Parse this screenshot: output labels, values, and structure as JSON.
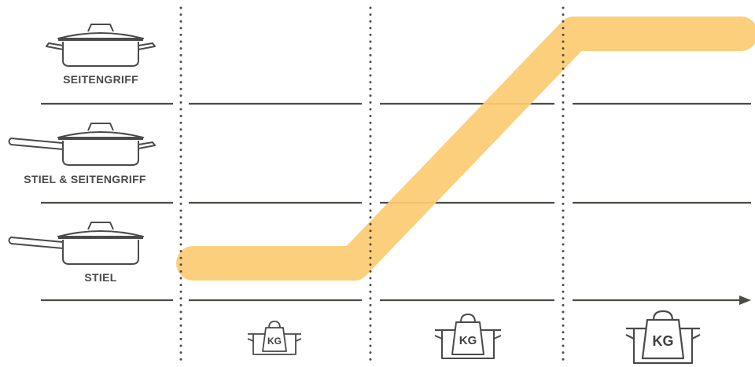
{
  "colors": {
    "line": "#4d4b47",
    "band": "#fbcb72",
    "icon": "#4a4a4a"
  },
  "rows": [
    {
      "label": "SEITENGRIFF",
      "icon": "pan-side-handles-icon"
    },
    {
      "label": "STIEL & SEITENGRIFF",
      "icon": "pan-stick-and-side-handle-icon"
    },
    {
      "label": "STIEL",
      "icon": "pan-stick-handle-icon"
    }
  ],
  "weights": [
    {
      "label": "KG",
      "size": "small",
      "icon": "weight-small-icon"
    },
    {
      "label": "KG",
      "size": "medium",
      "icon": "weight-medium-icon"
    },
    {
      "label": "KG",
      "size": "large",
      "icon": "weight-large-icon"
    }
  ]
}
